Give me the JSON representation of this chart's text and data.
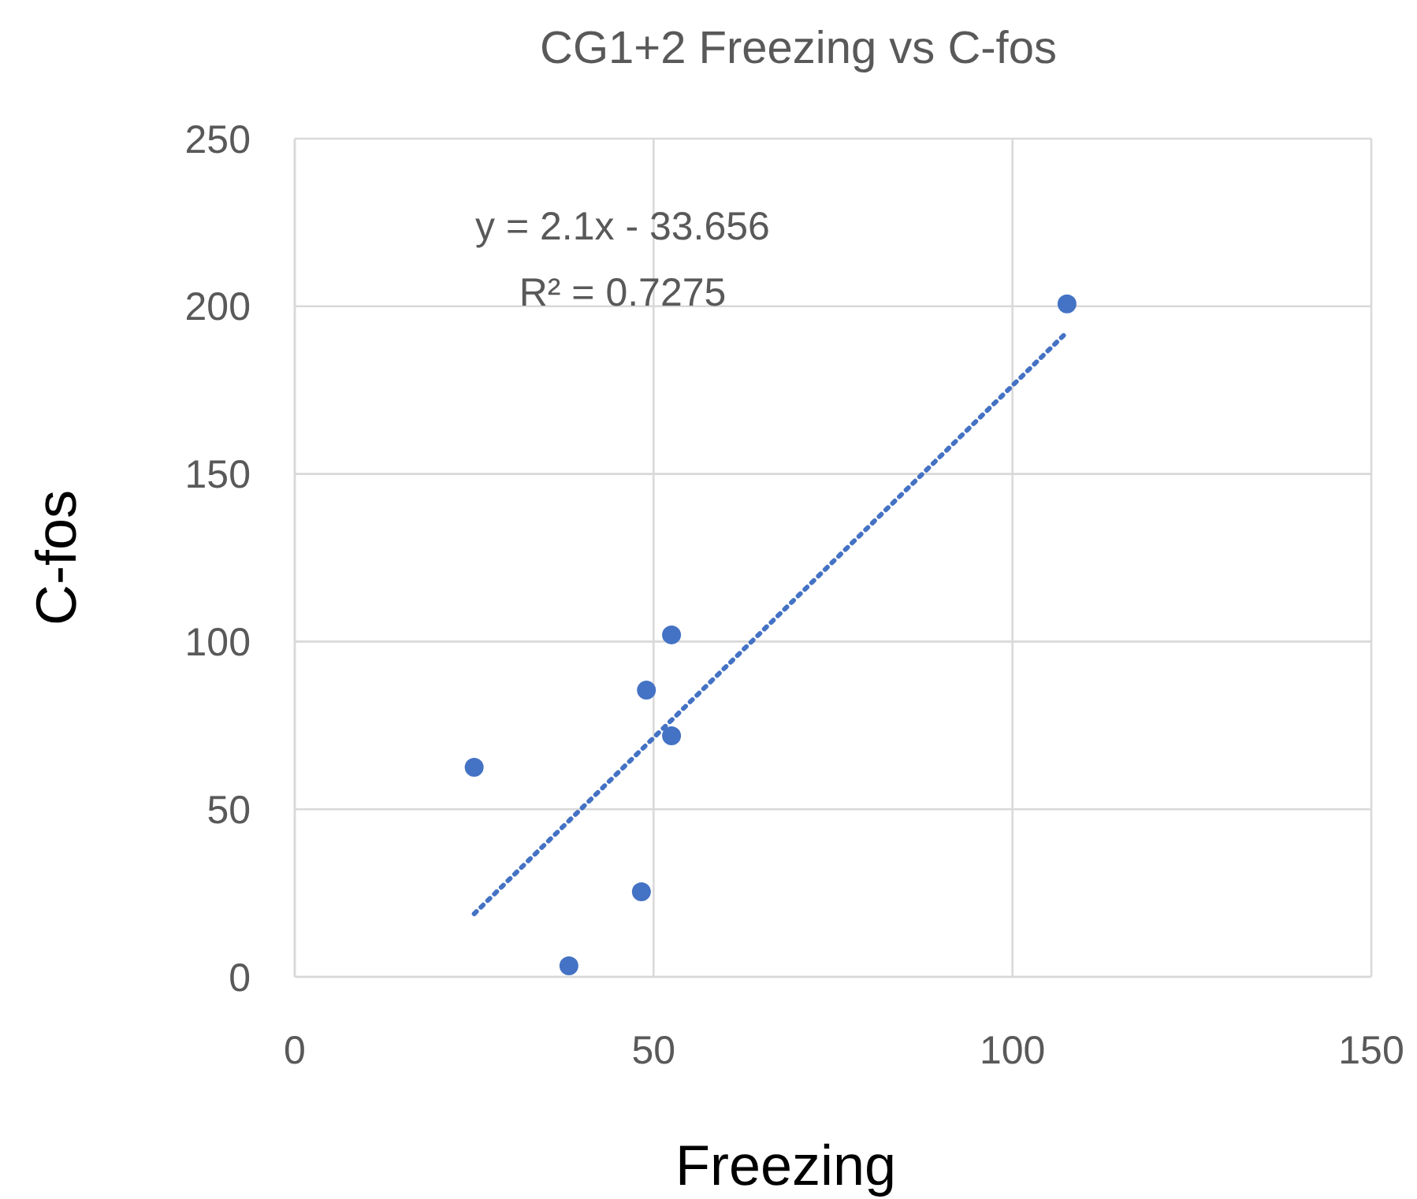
{
  "chart_data": {
    "type": "scatter",
    "title": "CG1+2 Freezing vs C-fos",
    "xlabel": "Freezing",
    "ylabel": "C-fos",
    "annotations": [
      "y = 2.1x - 33.656",
      "R² = 0.7275"
    ],
    "xlim": [
      0,
      150
    ],
    "xticks": [
      0,
      50,
      100,
      150
    ],
    "ylim": [
      0,
      250
    ],
    "yticks": [
      0,
      50,
      100,
      150,
      200,
      250
    ],
    "grid": true,
    "series": [
      {
        "color": "#4472c4",
        "marker": "circle",
        "x": [
          25.0,
          38.2,
          48.3,
          49.0,
          52.5,
          52.5,
          107.6
        ],
        "values": [
          62.5,
          3.3,
          25.4,
          85.5,
          71.9,
          102,
          200.7
        ]
      },
      {
        "type": "line",
        "color": "#4472c4",
        "marker": "none",
        "line_style": "dotted",
        "x": [
          25.0,
          107.6
        ],
        "values": [
          18.8,
          192.3
        ]
      }
    ]
  }
}
